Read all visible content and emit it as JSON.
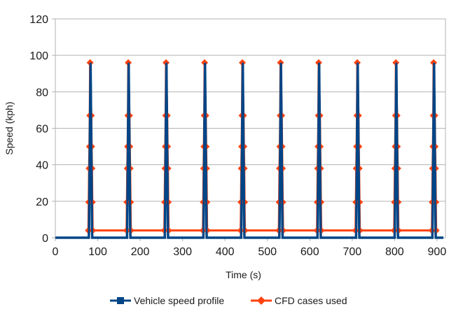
{
  "chart_data": {
    "type": "line",
    "title": "",
    "xlabel": "Time (s)",
    "ylabel": "Speed (kph)",
    "xlim": [
      0,
      920
    ],
    "ylim": [
      0,
      120
    ],
    "x_ticks": [
      0,
      100,
      200,
      300,
      400,
      500,
      600,
      700,
      800,
      900
    ],
    "y_ticks": [
      0,
      20,
      40,
      60,
      80,
      100,
      120
    ],
    "grid": "horizontal",
    "legend_position": "bottom",
    "cycle_peak_times": [
      83,
      173,
      262,
      353,
      442,
      532,
      622,
      713,
      804,
      893
    ],
    "series": [
      {
        "name": "Vehicle speed profile",
        "color": "#004586",
        "marker": "square",
        "description": "10 repeating drive cycles; speed 0 between cycles, sharp spike to ~96 kph at each cycle",
        "baseline": 0,
        "peak": 96
      },
      {
        "name": "CFD cases used",
        "color": "#ff420e",
        "marker": "diamond",
        "description": "CFD sample points at each spike ramp, connected by ~4 kph baseline between cycles",
        "levels": [
          4,
          19.5,
          38,
          50,
          67,
          96
        ],
        "baseline": 4
      }
    ]
  },
  "legend": {
    "items": [
      {
        "label": "Vehicle speed profile",
        "color": "#004586"
      },
      {
        "label": "CFD cases used",
        "color": "#ff420e"
      }
    ]
  }
}
